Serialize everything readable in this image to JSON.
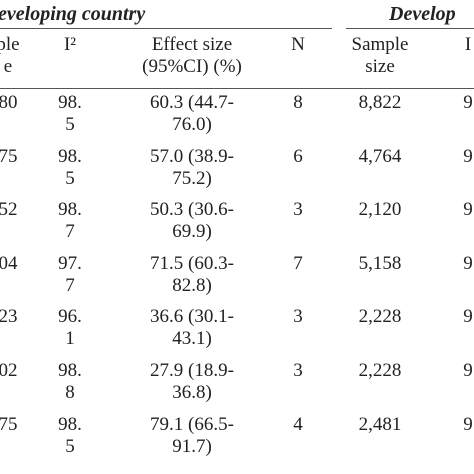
{
  "table": {
    "group_headers": {
      "developing": "eveloping country",
      "developed": "Develop"
    },
    "headers": {
      "sample_size_left": [
        "ple",
        "e"
      ],
      "i2": "I²",
      "effect_size": [
        "Effect size",
        "(95%CI) (%)"
      ],
      "n": "N",
      "sample_size": [
        "Sample",
        "size"
      ],
      "right_col": "I"
    },
    "rows": [
      {
        "sample_left": "80",
        "i2": [
          "98.",
          "5"
        ],
        "effect": [
          "60.3 (44.7-",
          "76.0)"
        ],
        "n": "8",
        "sample": "8,822",
        "right": "9"
      },
      {
        "sample_left": "75",
        "i2": [
          "98.",
          "5"
        ],
        "effect": [
          "57.0 (38.9-",
          "75.2)"
        ],
        "n": "6",
        "sample": "4,764",
        "right": "9"
      },
      {
        "sample_left": "52",
        "i2": [
          "98.",
          "7"
        ],
        "effect": [
          "50.3 (30.6-",
          "69.9)"
        ],
        "n": "3",
        "sample": "2,120",
        "right": "9"
      },
      {
        "sample_left": "04",
        "i2": [
          "97.",
          "7"
        ],
        "effect": [
          "71.5 (60.3-",
          "82.8)"
        ],
        "n": "7",
        "sample": "5,158",
        "right": "9"
      },
      {
        "sample_left": "23",
        "i2": [
          "96.",
          "1"
        ],
        "effect": [
          "36.6 (30.1-",
          "43.1)"
        ],
        "n": "3",
        "sample": "2,228",
        "right": "9"
      },
      {
        "sample_left": "02",
        "i2": [
          "98.",
          "8"
        ],
        "effect": [
          "27.9 (18.9-",
          "36.8)"
        ],
        "n": "3",
        "sample": "2,228",
        "right": "9"
      },
      {
        "sample_left": "75",
        "i2": [
          "98.",
          "5"
        ],
        "effect": [
          "79.1 (66.5-",
          "91.7)"
        ],
        "n": "4",
        "sample": "2,481",
        "right": "9"
      }
    ]
  }
}
